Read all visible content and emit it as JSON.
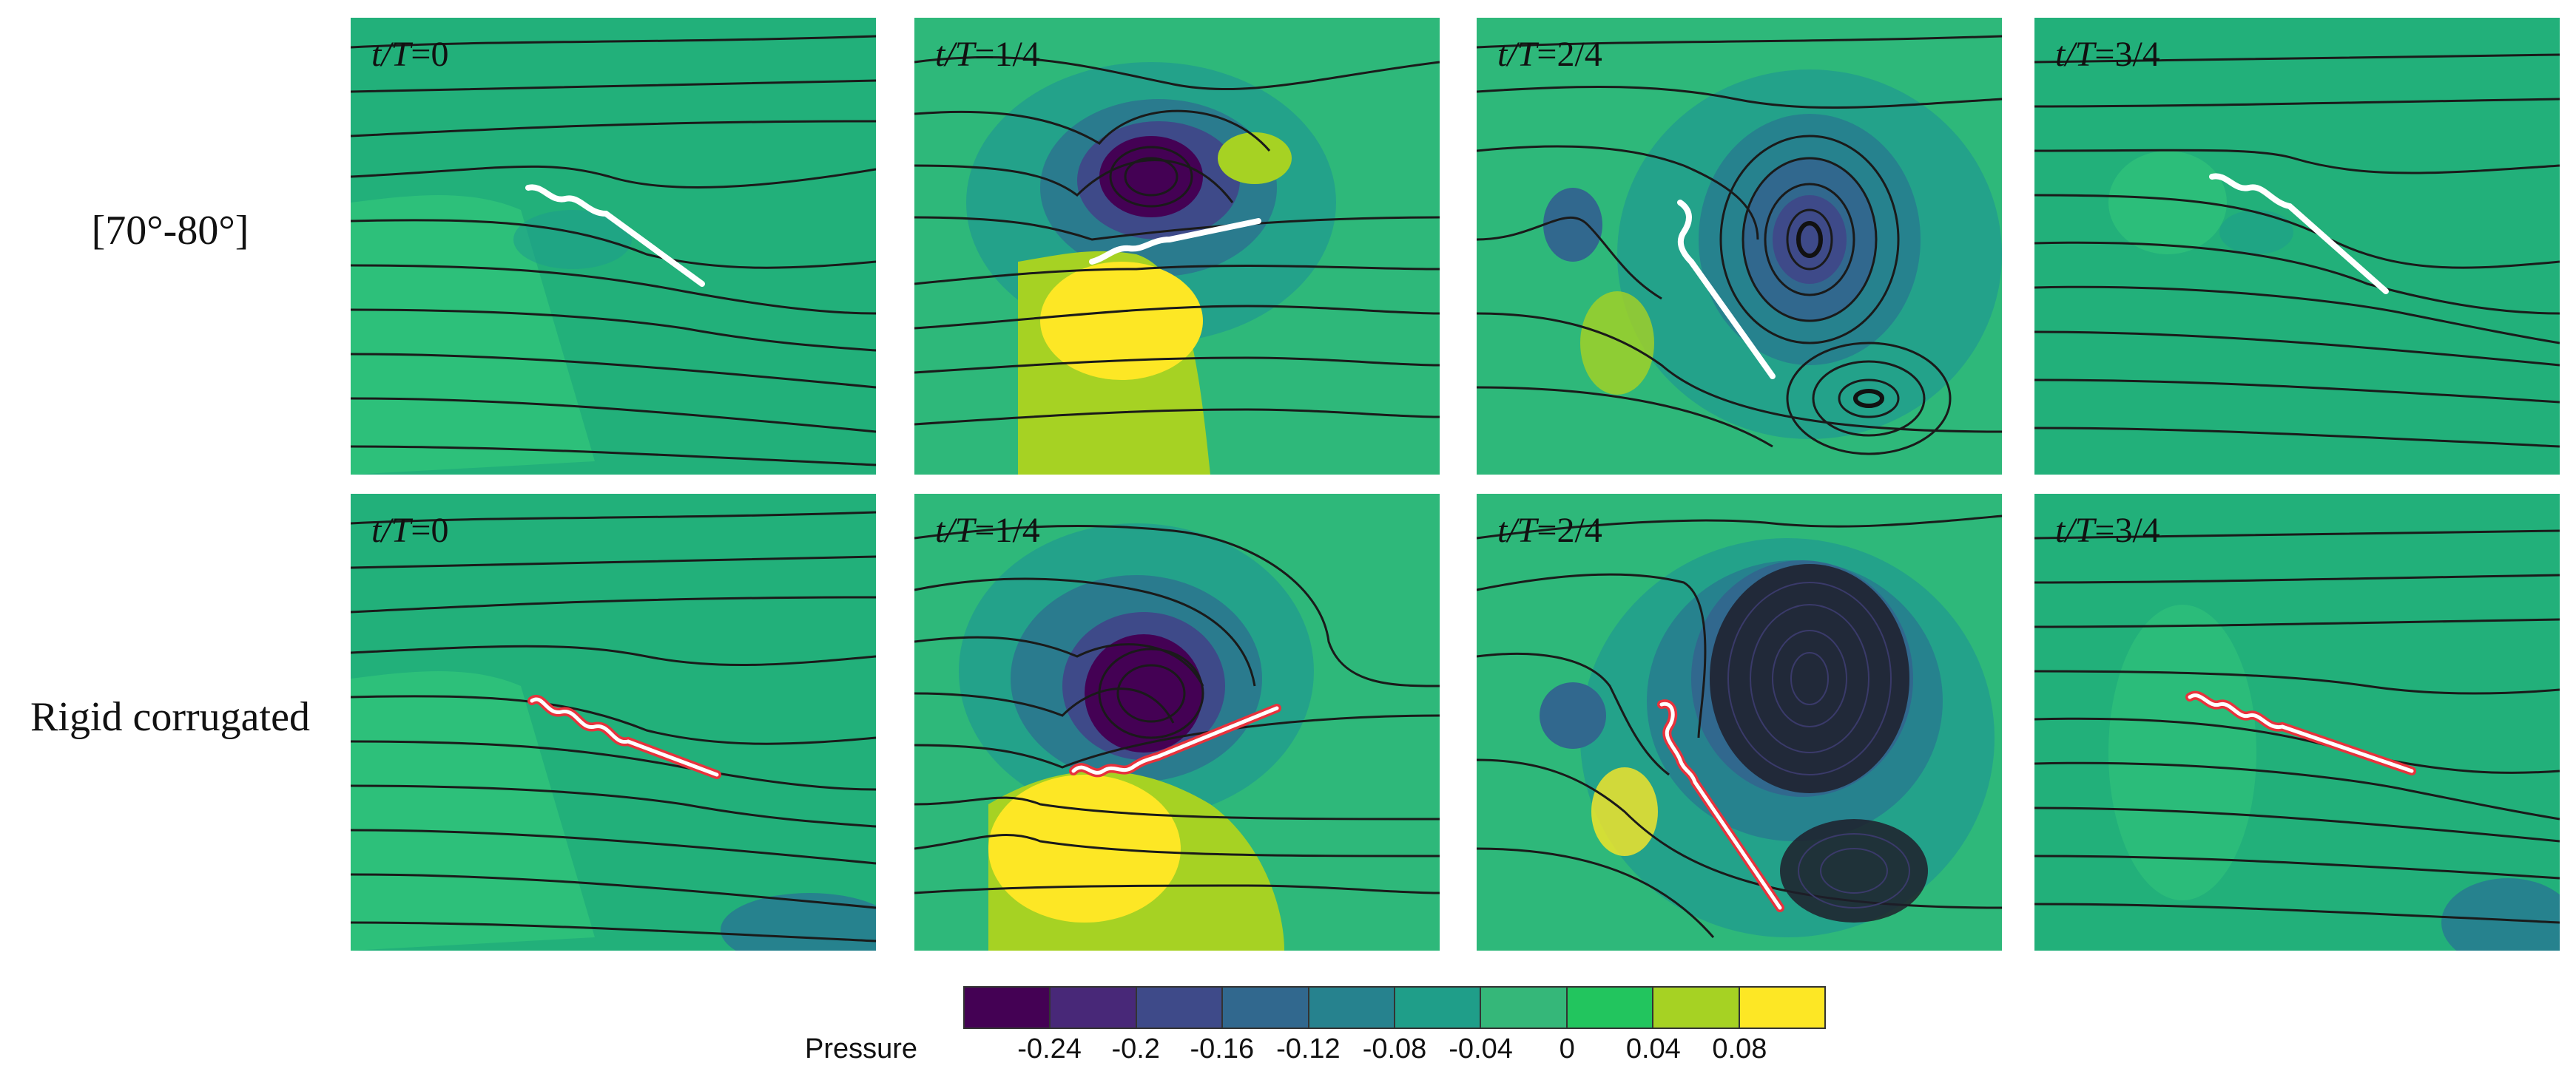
{
  "rows": [
    {
      "label": "[70°-80°]"
    },
    {
      "label": "Rigid corrugated"
    }
  ],
  "panels": [
    {
      "var": "t/T",
      "value": "=0"
    },
    {
      "var": "t/T",
      "value": "=1/4"
    },
    {
      "var": "t/T",
      "value": "=2/4"
    },
    {
      "var": "t/T",
      "value": "=3/4"
    }
  ],
  "colorbar": {
    "title": "Pressure",
    "ticks": [
      "-0.24",
      "-0.2",
      "-0.16",
      "-0.12",
      "-0.08",
      "-0.04",
      "0",
      "0.04",
      "0.08"
    ],
    "colors": [
      "#440154",
      "#482878",
      "#3e4a89",
      "#31688e",
      "#26828e",
      "#1f9e89",
      "#35b779",
      "#22c55e",
      "#a6d223",
      "#fde725"
    ]
  }
}
